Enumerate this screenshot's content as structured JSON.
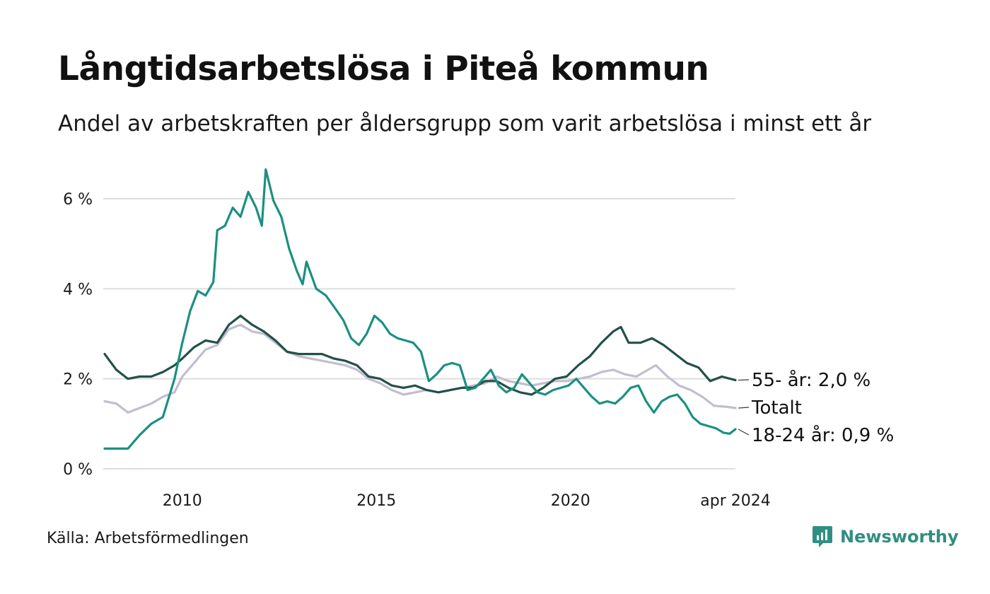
{
  "title": "Långtidsarbetslösa i Piteå kommun",
  "subtitle": "Andel av arbetskraften per åldersgrupp som varit arbetslösa i minst ett år",
  "source": "Källa: Arbetsförmedlingen",
  "brand": {
    "name": "Newsworthy",
    "icon": "newsworthy-logo-icon",
    "color": "#2f8f80"
  },
  "chart_data": {
    "type": "line",
    "title": "Långtidsarbetslösa i Piteå kommun",
    "xlabel": "",
    "ylabel": "",
    "ylim": [
      0,
      6.8
    ],
    "xlim": [
      2008.0,
      2024.25
    ],
    "y_ticks": [
      {
        "value": 0,
        "label": "0 %"
      },
      {
        "value": 2,
        "label": "2 %"
      },
      {
        "value": 4,
        "label": "4 %"
      },
      {
        "value": 6,
        "label": "6 %"
      }
    ],
    "x_ticks": [
      {
        "value": 2010,
        "label": "2010"
      },
      {
        "value": 2015,
        "label": "2015"
      },
      {
        "value": 2020,
        "label": "2020"
      },
      {
        "value": 2024.25,
        "label": "apr 2024"
      }
    ],
    "grid": true,
    "series": [
      {
        "name": "Totalt",
        "end_label": "Totalt",
        "color": "#c3bdd0",
        "points": [
          [
            2008.0,
            1.5
          ],
          [
            2008.3,
            1.45
          ],
          [
            2008.6,
            1.25
          ],
          [
            2008.9,
            1.35
          ],
          [
            2009.2,
            1.45
          ],
          [
            2009.5,
            1.6
          ],
          [
            2009.8,
            1.7
          ],
          [
            2010.0,
            2.05
          ],
          [
            2010.3,
            2.35
          ],
          [
            2010.6,
            2.65
          ],
          [
            2010.9,
            2.75
          ],
          [
            2011.2,
            3.1
          ],
          [
            2011.5,
            3.2
          ],
          [
            2011.8,
            3.05
          ],
          [
            2012.1,
            3.0
          ],
          [
            2012.4,
            2.8
          ],
          [
            2012.7,
            2.6
          ],
          [
            2013.0,
            2.5
          ],
          [
            2013.3,
            2.45
          ],
          [
            2013.6,
            2.4
          ],
          [
            2013.9,
            2.35
          ],
          [
            2014.2,
            2.3
          ],
          [
            2014.5,
            2.2
          ],
          [
            2014.8,
            2.0
          ],
          [
            2015.1,
            1.9
          ],
          [
            2015.4,
            1.75
          ],
          [
            2015.7,
            1.65
          ],
          [
            2016.0,
            1.7
          ],
          [
            2016.3,
            1.75
          ],
          [
            2016.6,
            1.7
          ],
          [
            2016.9,
            1.75
          ],
          [
            2017.2,
            1.8
          ],
          [
            2017.5,
            1.85
          ],
          [
            2017.8,
            1.9
          ],
          [
            2018.1,
            2.05
          ],
          [
            2018.4,
            1.95
          ],
          [
            2018.7,
            1.9
          ],
          [
            2019.0,
            1.85
          ],
          [
            2019.3,
            1.9
          ],
          [
            2019.6,
            1.95
          ],
          [
            2019.9,
            1.95
          ],
          [
            2020.2,
            2.0
          ],
          [
            2020.5,
            2.05
          ],
          [
            2020.8,
            2.15
          ],
          [
            2021.1,
            2.2
          ],
          [
            2021.4,
            2.1
          ],
          [
            2021.7,
            2.05
          ],
          [
            2022.0,
            2.2
          ],
          [
            2022.2,
            2.3
          ],
          [
            2022.5,
            2.05
          ],
          [
            2022.8,
            1.85
          ],
          [
            2023.1,
            1.75
          ],
          [
            2023.4,
            1.6
          ],
          [
            2023.7,
            1.4
          ],
          [
            2024.0,
            1.38
          ],
          [
            2024.25,
            1.35
          ]
        ]
      },
      {
        "name": "55- år",
        "end_label": "55- år: 2,0 %",
        "color": "#23504a",
        "points": [
          [
            2008.0,
            2.55
          ],
          [
            2008.3,
            2.2
          ],
          [
            2008.6,
            2.0
          ],
          [
            2008.9,
            2.05
          ],
          [
            2009.2,
            2.05
          ],
          [
            2009.5,
            2.15
          ],
          [
            2009.8,
            2.3
          ],
          [
            2010.0,
            2.45
          ],
          [
            2010.3,
            2.7
          ],
          [
            2010.6,
            2.85
          ],
          [
            2010.9,
            2.8
          ],
          [
            2011.2,
            3.2
          ],
          [
            2011.5,
            3.4
          ],
          [
            2011.8,
            3.2
          ],
          [
            2012.1,
            3.05
          ],
          [
            2012.4,
            2.85
          ],
          [
            2012.7,
            2.6
          ],
          [
            2013.0,
            2.55
          ],
          [
            2013.3,
            2.55
          ],
          [
            2013.6,
            2.55
          ],
          [
            2013.9,
            2.45
          ],
          [
            2014.2,
            2.4
          ],
          [
            2014.5,
            2.3
          ],
          [
            2014.8,
            2.05
          ],
          [
            2015.1,
            2.0
          ],
          [
            2015.4,
            1.85
          ],
          [
            2015.7,
            1.8
          ],
          [
            2016.0,
            1.85
          ],
          [
            2016.3,
            1.75
          ],
          [
            2016.6,
            1.7
          ],
          [
            2016.9,
            1.75
          ],
          [
            2017.2,
            1.8
          ],
          [
            2017.5,
            1.8
          ],
          [
            2017.8,
            1.95
          ],
          [
            2018.1,
            1.95
          ],
          [
            2018.4,
            1.8
          ],
          [
            2018.7,
            1.7
          ],
          [
            2019.0,
            1.65
          ],
          [
            2019.3,
            1.8
          ],
          [
            2019.6,
            2.0
          ],
          [
            2019.9,
            2.05
          ],
          [
            2020.2,
            2.3
          ],
          [
            2020.5,
            2.5
          ],
          [
            2020.8,
            2.8
          ],
          [
            2021.1,
            3.05
          ],
          [
            2021.3,
            3.15
          ],
          [
            2021.5,
            2.8
          ],
          [
            2021.8,
            2.8
          ],
          [
            2022.1,
            2.9
          ],
          [
            2022.4,
            2.75
          ],
          [
            2022.7,
            2.55
          ],
          [
            2023.0,
            2.35
          ],
          [
            2023.3,
            2.25
          ],
          [
            2023.6,
            1.95
          ],
          [
            2023.9,
            2.05
          ],
          [
            2024.25,
            1.97
          ]
        ]
      },
      {
        "name": "18-24 år",
        "end_label": "18-24 år: 0,9 %",
        "color": "#1b9080",
        "points": [
          [
            2008.0,
            0.45
          ],
          [
            2008.3,
            0.45
          ],
          [
            2008.6,
            0.45
          ],
          [
            2008.9,
            0.75
          ],
          [
            2009.2,
            1.0
          ],
          [
            2009.5,
            1.15
          ],
          [
            2009.8,
            2.0
          ],
          [
            2010.0,
            2.8
          ],
          [
            2010.2,
            3.5
          ],
          [
            2010.4,
            3.95
          ],
          [
            2010.6,
            3.85
          ],
          [
            2010.8,
            4.15
          ],
          [
            2010.9,
            5.3
          ],
          [
            2011.1,
            5.4
          ],
          [
            2011.3,
            5.8
          ],
          [
            2011.5,
            5.6
          ],
          [
            2011.7,
            6.15
          ],
          [
            2011.9,
            5.8
          ],
          [
            2012.05,
            5.4
          ],
          [
            2012.15,
            6.65
          ],
          [
            2012.35,
            5.95
          ],
          [
            2012.55,
            5.6
          ],
          [
            2012.75,
            4.9
          ],
          [
            2012.95,
            4.4
          ],
          [
            2013.1,
            4.1
          ],
          [
            2013.2,
            4.6
          ],
          [
            2013.45,
            4.0
          ],
          [
            2013.7,
            3.85
          ],
          [
            2013.95,
            3.55
          ],
          [
            2014.15,
            3.3
          ],
          [
            2014.35,
            2.9
          ],
          [
            2014.55,
            2.75
          ],
          [
            2014.75,
            3.0
          ],
          [
            2014.95,
            3.4
          ],
          [
            2015.15,
            3.25
          ],
          [
            2015.35,
            3.0
          ],
          [
            2015.55,
            2.9
          ],
          [
            2015.75,
            2.85
          ],
          [
            2015.95,
            2.8
          ],
          [
            2016.15,
            2.6
          ],
          [
            2016.35,
            1.95
          ],
          [
            2016.55,
            2.1
          ],
          [
            2016.75,
            2.3
          ],
          [
            2016.95,
            2.35
          ],
          [
            2017.15,
            2.3
          ],
          [
            2017.35,
            1.75
          ],
          [
            2017.55,
            1.8
          ],
          [
            2017.75,
            2.0
          ],
          [
            2017.95,
            2.2
          ],
          [
            2018.15,
            1.85
          ],
          [
            2018.35,
            1.7
          ],
          [
            2018.55,
            1.8
          ],
          [
            2018.75,
            2.1
          ],
          [
            2018.95,
            1.9
          ],
          [
            2019.15,
            1.7
          ],
          [
            2019.35,
            1.65
          ],
          [
            2019.55,
            1.75
          ],
          [
            2019.75,
            1.8
          ],
          [
            2019.95,
            1.85
          ],
          [
            2020.15,
            2.0
          ],
          [
            2020.35,
            1.8
          ],
          [
            2020.55,
            1.6
          ],
          [
            2020.75,
            1.45
          ],
          [
            2020.95,
            1.5
          ],
          [
            2021.15,
            1.45
          ],
          [
            2021.35,
            1.6
          ],
          [
            2021.55,
            1.8
          ],
          [
            2021.75,
            1.85
          ],
          [
            2021.95,
            1.5
          ],
          [
            2022.15,
            1.25
          ],
          [
            2022.35,
            1.5
          ],
          [
            2022.55,
            1.6
          ],
          [
            2022.75,
            1.65
          ],
          [
            2022.95,
            1.45
          ],
          [
            2023.15,
            1.15
          ],
          [
            2023.35,
            1.0
          ],
          [
            2023.55,
            0.95
          ],
          [
            2023.75,
            0.9
          ],
          [
            2023.95,
            0.8
          ],
          [
            2024.1,
            0.78
          ],
          [
            2024.25,
            0.88
          ]
        ]
      }
    ]
  }
}
